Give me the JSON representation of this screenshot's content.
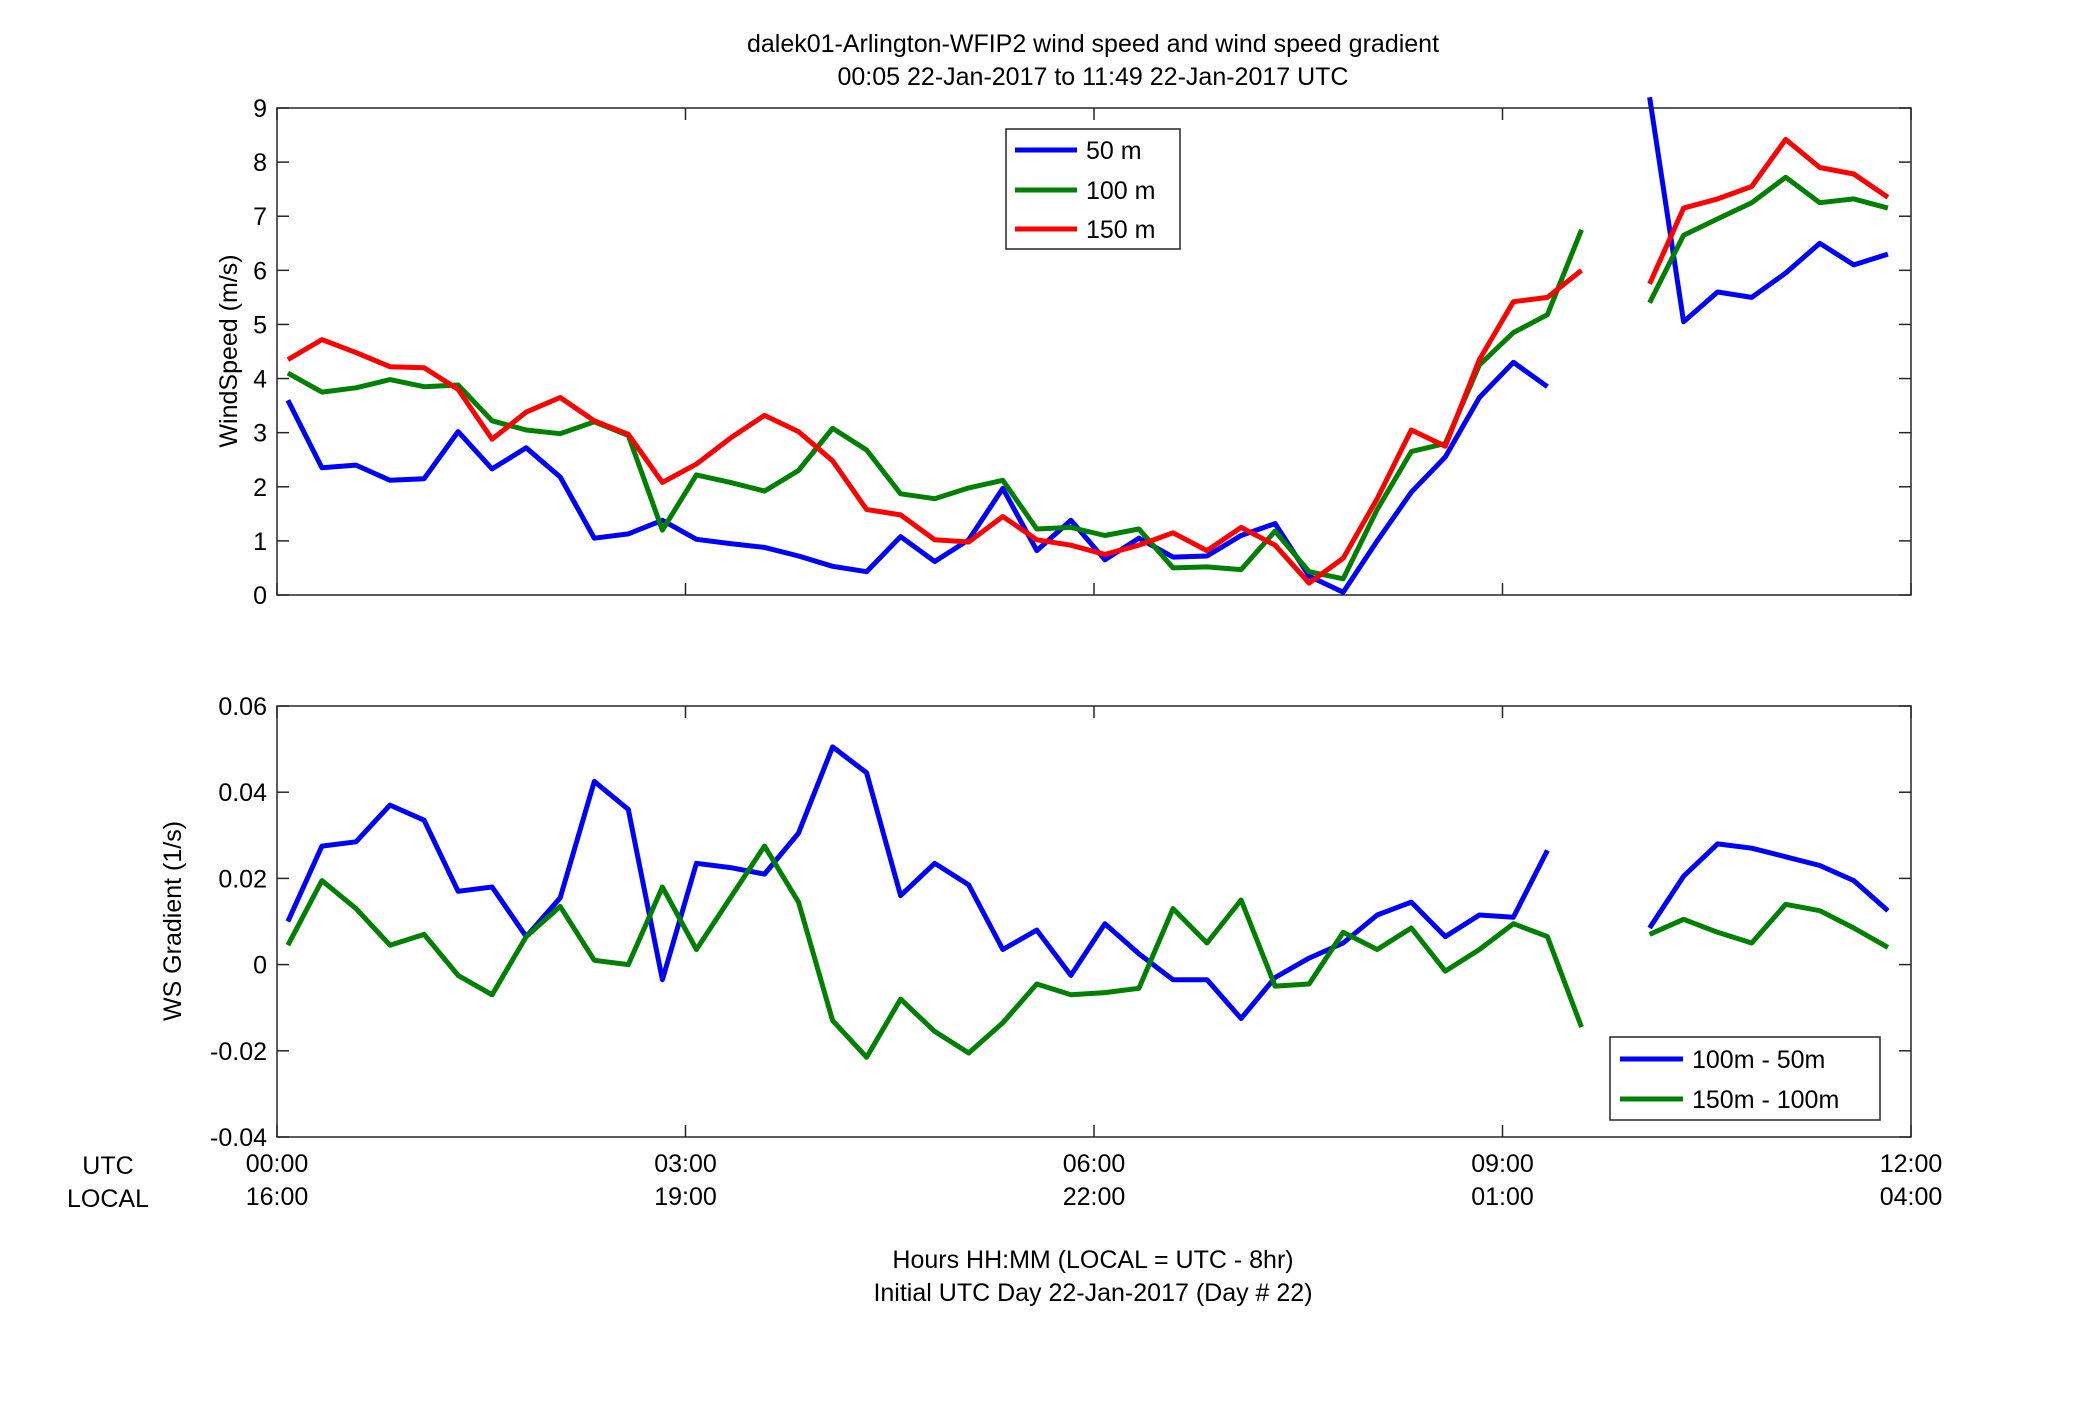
{
  "chart_data": [
    {
      "type": "line",
      "title": "dalek01-Arlington-WFIP2  wind speed and wind speed gradient",
      "subtitle": "00:05 22-Jan-2017 to 11:49 22-Jan-2017  UTC",
      "ylabel": "WindSpeed (m/s)",
      "xlim": [
        0,
        12
      ],
      "ylim": [
        0,
        9
      ],
      "yticks": [
        0,
        1,
        2,
        3,
        4,
        5,
        6,
        7,
        8,
        9
      ],
      "ytick_labels": [
        "0",
        "1",
        "2",
        "3",
        "4",
        "5",
        "6",
        "7",
        "8",
        "9"
      ],
      "legend_position": "top-center",
      "series": [
        {
          "name": "50 m",
          "color": "#0000ff",
          "x": [
            0.08,
            0.33,
            0.58,
            0.83,
            1.08,
            1.33,
            1.58,
            1.83,
            2.08,
            2.33,
            2.58,
            2.83,
            3.08,
            3.33,
            3.58,
            3.83,
            4.08,
            4.33,
            4.58,
            4.83,
            5.08,
            5.33,
            5.58,
            5.83,
            6.08,
            6.33,
            6.58,
            6.83,
            7.08,
            7.33,
            7.58,
            7.83,
            8.08,
            8.33,
            8.58,
            8.83,
            9.08,
            9.33,
            9.58,
            9.83,
            10.08,
            10.33,
            10.58,
            10.83,
            11.08,
            11.33,
            11.58,
            11.83
          ],
          "y": [
            3.6,
            2.35,
            2.4,
            2.12,
            2.15,
            3.02,
            2.33,
            2.72,
            2.18,
            1.05,
            1.13,
            1.38,
            1.03,
            0.95,
            0.88,
            0.72,
            0.53,
            0.43,
            1.08,
            0.62,
            1.02,
            1.97,
            0.82,
            1.38,
            0.65,
            1.05,
            0.7,
            0.72,
            1.1,
            1.32,
            0.35,
            0.05,
            1.0,
            1.9,
            2.55,
            3.65,
            4.3,
            3.85,
            null,
            null,
            9.2,
            5.05,
            5.6,
            5.5,
            5.95,
            6.5,
            6.1,
            6.3
          ]
        },
        {
          "name": "100 m",
          "color": "#008000",
          "x": [
            0.08,
            0.33,
            0.58,
            0.83,
            1.08,
            1.33,
            1.58,
            1.83,
            2.08,
            2.33,
            2.58,
            2.83,
            3.08,
            3.33,
            3.58,
            3.83,
            4.08,
            4.33,
            4.58,
            4.83,
            5.08,
            5.33,
            5.58,
            5.83,
            6.08,
            6.33,
            6.58,
            6.83,
            7.08,
            7.33,
            7.58,
            7.83,
            8.08,
            8.33,
            8.58,
            8.83,
            9.08,
            9.33,
            9.58,
            9.83,
            10.08,
            10.33,
            10.58,
            10.83,
            11.08,
            11.33,
            11.58,
            11.83
          ],
          "y": [
            4.1,
            3.75,
            3.83,
            3.98,
            3.85,
            3.88,
            3.22,
            3.05,
            2.98,
            3.2,
            2.95,
            1.2,
            2.22,
            2.08,
            1.92,
            2.3,
            3.08,
            2.68,
            1.87,
            1.78,
            1.98,
            2.12,
            1.22,
            1.25,
            1.1,
            1.22,
            0.5,
            0.52,
            0.47,
            1.18,
            0.43,
            0.3,
            1.58,
            2.65,
            2.8,
            4.25,
            4.85,
            5.18,
            6.75,
            null,
            5.4,
            6.65,
            6.95,
            7.25,
            7.72,
            7.25,
            7.32,
            7.15
          ]
        },
        {
          "name": "150 m",
          "color": "#ff0000",
          "x": [
            0.08,
            0.33,
            0.58,
            0.83,
            1.08,
            1.33,
            1.58,
            1.83,
            2.08,
            2.33,
            2.58,
            2.83,
            3.08,
            3.33,
            3.58,
            3.83,
            4.08,
            4.33,
            4.58,
            4.83,
            5.08,
            5.33,
            5.58,
            5.83,
            6.08,
            6.33,
            6.58,
            6.83,
            7.08,
            7.33,
            7.58,
            7.83,
            8.08,
            8.33,
            8.58,
            8.83,
            9.08,
            9.33,
            9.58,
            9.83,
            10.08,
            10.33,
            10.58,
            10.83,
            11.08,
            11.33,
            11.58,
            11.83
          ],
          "y": [
            4.35,
            4.72,
            4.48,
            4.22,
            4.2,
            3.8,
            2.88,
            3.38,
            3.65,
            3.22,
            2.97,
            2.08,
            2.42,
            2.9,
            3.32,
            3.02,
            2.48,
            1.58,
            1.48,
            1.02,
            0.98,
            1.45,
            1.02,
            0.92,
            0.75,
            0.92,
            1.15,
            0.82,
            1.25,
            0.92,
            0.22,
            0.68,
            1.78,
            3.05,
            2.75,
            4.35,
            5.42,
            5.5,
            6.0,
            null,
            5.75,
            7.15,
            7.32,
            7.55,
            8.42,
            7.9,
            7.78,
            7.35
          ]
        }
      ]
    },
    {
      "type": "line",
      "ylabel": "WS Gradient (1/s)",
      "xlim": [
        0,
        12
      ],
      "ylim": [
        -0.04,
        0.06
      ],
      "yticks": [
        -0.04,
        -0.02,
        0,
        0.02,
        0.04,
        0.06
      ],
      "ytick_labels": [
        "-0.04",
        "-0.02",
        "0",
        "0.02",
        "0.04",
        "0.06"
      ],
      "xticks": [
        0,
        3,
        6,
        9,
        12
      ],
      "utc_row_label": "UTC",
      "local_row_label": "LOCAL",
      "utc_tick_labels": [
        "00:00",
        "03:00",
        "06:00",
        "09:00",
        "12:00"
      ],
      "local_tick_labels": [
        "16:00",
        "19:00",
        "22:00",
        "01:00",
        "04:00"
      ],
      "xlabel": "Hours HH:MM  (LOCAL = UTC - 8hr)",
      "xlabel_line2": "Initial UTC Day 22-Jan-2017 (Day # 22)",
      "legend_position": "bottom-right",
      "series": [
        {
          "name": "100m - 50m",
          "color": "#0000ff",
          "x": [
            0.08,
            0.33,
            0.58,
            0.83,
            1.08,
            1.33,
            1.58,
            1.83,
            2.08,
            2.33,
            2.58,
            2.83,
            3.08,
            3.33,
            3.58,
            3.83,
            4.08,
            4.33,
            4.58,
            4.83,
            5.08,
            5.33,
            5.58,
            5.83,
            6.08,
            6.33,
            6.58,
            6.83,
            7.08,
            7.33,
            7.58,
            7.83,
            8.08,
            8.33,
            8.58,
            8.83,
            9.08,
            9.33,
            9.58,
            9.83,
            10.08,
            10.33,
            10.58,
            10.83,
            11.08,
            11.33,
            11.58,
            11.83
          ],
          "y": [
            0.01,
            0.0275,
            0.0285,
            0.037,
            0.0335,
            0.017,
            0.018,
            0.0065,
            0.0155,
            0.0425,
            0.036,
            -0.0035,
            0.0235,
            0.0225,
            0.021,
            0.0305,
            0.0505,
            0.0445,
            0.016,
            0.0235,
            0.0185,
            0.0035,
            0.008,
            -0.0025,
            0.0095,
            0.0025,
            -0.0035,
            -0.0035,
            -0.0125,
            -0.003,
            0.0015,
            0.005,
            0.0115,
            0.0145,
            0.0065,
            0.0115,
            0.011,
            0.0265,
            null,
            null,
            0.0085,
            0.0205,
            0.028,
            0.027,
            0.025,
            0.023,
            0.0195,
            0.0125
          ]
        },
        {
          "name": "150m - 100m",
          "color": "#008000",
          "x": [
            0.08,
            0.33,
            0.58,
            0.83,
            1.08,
            1.33,
            1.58,
            1.83,
            2.08,
            2.33,
            2.58,
            2.83,
            3.08,
            3.33,
            3.58,
            3.83,
            4.08,
            4.33,
            4.58,
            4.83,
            5.08,
            5.33,
            5.58,
            5.83,
            6.08,
            6.33,
            6.58,
            6.83,
            7.08,
            7.33,
            7.58,
            7.83,
            8.08,
            8.33,
            8.58,
            8.83,
            9.08,
            9.33,
            9.58,
            9.83,
            10.08,
            10.33,
            10.58,
            10.83,
            11.08,
            11.33,
            11.58,
            11.83
          ],
          "y": [
            0.0045,
            0.0195,
            0.013,
            0.0045,
            0.007,
            -0.0025,
            -0.007,
            0.0065,
            0.0135,
            0.001,
            0.0,
            0.018,
            0.0035,
            0.0155,
            0.0275,
            0.0145,
            -0.013,
            -0.0215,
            -0.008,
            -0.0155,
            -0.0205,
            -0.0135,
            -0.0045,
            -0.007,
            -0.0065,
            -0.0055,
            0.013,
            0.005,
            0.015,
            -0.005,
            -0.0045,
            0.0075,
            0.0035,
            0.0085,
            -0.0015,
            0.0035,
            0.0095,
            0.0065,
            -0.0145,
            null,
            0.007,
            0.0105,
            0.0075,
            0.005,
            0.014,
            0.0125,
            0.0085,
            0.004
          ]
        }
      ]
    }
  ]
}
